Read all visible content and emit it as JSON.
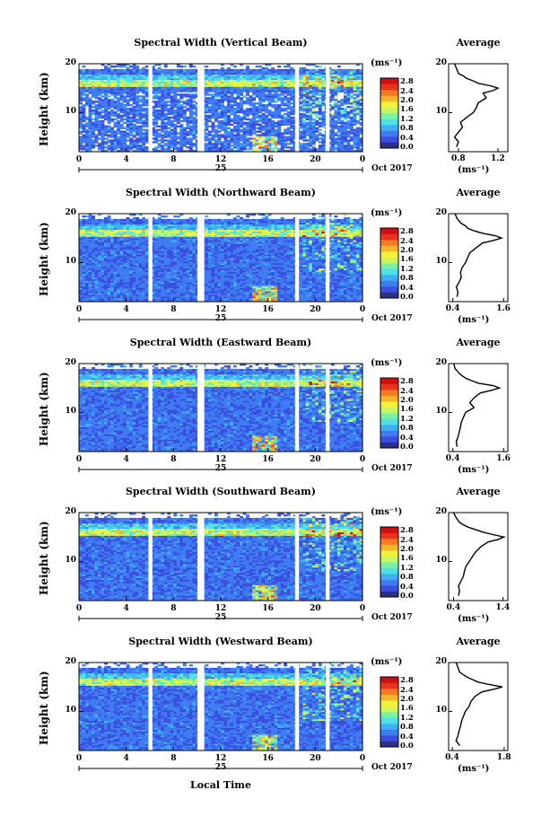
{
  "chart_data": [
    {
      "type": "heatmap",
      "title": "Spectral Width (Vertical Beam)",
      "ylabel": "Height (km)",
      "y_ticks": [
        "20",
        "10"
      ],
      "x_ticks": [
        "0",
        "4",
        "8",
        "12",
        "16",
        "20",
        "0"
      ],
      "date_label": "25",
      "month_label": "Oct 2017",
      "colorbar": {
        "unit": "(ms⁻¹)",
        "ticks": [
          "2.8",
          "2.4",
          "2.0",
          "1.6",
          "1.2",
          "0.8",
          "0.4",
          "0.0"
        ]
      },
      "average": {
        "title": "Average",
        "unit": "(ms⁻¹)",
        "x_ticks": [
          "0.8",
          "1.2"
        ],
        "y_ticks": [
          "20",
          "10"
        ],
        "xlim": [
          0.7,
          1.3
        ],
        "height_km": [
          3,
          4,
          5,
          6,
          7,
          8,
          9,
          10,
          11,
          12,
          13,
          14,
          14.5,
          15,
          15.5,
          16,
          16.5,
          17,
          17.5,
          18,
          19,
          20
        ],
        "values": [
          0.78,
          0.8,
          0.76,
          0.8,
          0.84,
          0.82,
          0.88,
          0.95,
          0.98,
          1.0,
          1.08,
          1.05,
          1.15,
          1.2,
          1.12,
          1.0,
          0.95,
          0.88,
          0.85,
          0.8,
          0.78,
          0.76
        ]
      }
    },
    {
      "type": "heatmap",
      "title": "Spectral Width (Northward Beam)",
      "ylabel": "Height (km)",
      "y_ticks": [
        "20",
        "10"
      ],
      "x_ticks": [
        "0",
        "4",
        "8",
        "12",
        "16",
        "20",
        "0"
      ],
      "date_label": "25",
      "month_label": "Oct 2017",
      "colorbar": {
        "unit": "(ms⁻¹)",
        "ticks": [
          "2.8",
          "2.4",
          "2.0",
          "1.6",
          "1.2",
          "0.8",
          "0.4",
          "0.0"
        ]
      },
      "average": {
        "title": "Average",
        "unit": "(ms⁻¹)",
        "x_ticks": [
          "0.4",
          "1.6"
        ],
        "y_ticks": [
          "20",
          "10"
        ],
        "xlim": [
          0.3,
          1.7
        ],
        "height_km": [
          3,
          4,
          5,
          6,
          7,
          8,
          9,
          10,
          11,
          12,
          13,
          14,
          14.5,
          15,
          15.5,
          16,
          16.5,
          17,
          17.5,
          18,
          19,
          20
        ],
        "values": [
          0.5,
          0.52,
          0.48,
          0.55,
          0.6,
          0.58,
          0.62,
          0.7,
          0.75,
          0.8,
          0.95,
          1.1,
          1.35,
          1.55,
          1.4,
          1.1,
          0.9,
          0.75,
          0.7,
          0.6,
          0.5,
          0.45
        ]
      }
    },
    {
      "type": "heatmap",
      "title": "Spectral Width (Eastward Beam)",
      "ylabel": "Height (km)",
      "y_ticks": [
        "20",
        "10"
      ],
      "x_ticks": [
        "0",
        "4",
        "8",
        "12",
        "16",
        "20",
        "0"
      ],
      "date_label": "25",
      "month_label": "Oct 2017",
      "colorbar": {
        "unit": "(ms⁻¹)",
        "ticks": [
          "2.8",
          "2.4",
          "2.0",
          "1.6",
          "1.2",
          "0.8",
          "0.4",
          "0.0"
        ]
      },
      "average": {
        "title": "Average",
        "unit": "(ms⁻¹)",
        "x_ticks": [
          "0.4",
          "1.6"
        ],
        "y_ticks": [
          "20",
          "10"
        ],
        "xlim": [
          0.3,
          1.7
        ],
        "height_km": [
          3,
          4,
          5,
          6,
          7,
          8,
          9,
          10,
          11,
          12,
          13,
          14,
          14.5,
          15,
          15.5,
          16,
          16.5,
          17,
          17.5,
          18,
          19,
          20
        ],
        "values": [
          0.5,
          0.48,
          0.52,
          0.55,
          0.58,
          0.6,
          0.65,
          0.7,
          0.9,
          0.8,
          0.9,
          1.05,
          1.3,
          1.5,
          1.35,
          1.0,
          0.85,
          0.7,
          0.62,
          0.55,
          0.45,
          0.42
        ]
      }
    },
    {
      "type": "heatmap",
      "title": "Spectral Width (Southward Beam)",
      "ylabel": "Height (km)",
      "y_ticks": [
        "20",
        "10"
      ],
      "x_ticks": [
        "0",
        "4",
        "8",
        "12",
        "16",
        "20",
        "0"
      ],
      "date_label": "25",
      "month_label": "Oct 2017",
      "colorbar": {
        "unit": "(ms⁻¹)",
        "ticks": [
          "2.8",
          "2.4",
          "2.0",
          "1.6",
          "1.2",
          "0.8",
          "0.4",
          "0.0"
        ]
      },
      "average": {
        "title": "Average",
        "unit": "(ms⁻¹)",
        "x_ticks": [
          "0.4",
          "1.4"
        ],
        "y_ticks": [
          "20",
          "10"
        ],
        "xlim": [
          0.3,
          1.5
        ],
        "height_km": [
          3,
          4,
          5,
          6,
          7,
          8,
          9,
          10,
          11,
          12,
          13,
          14,
          14.5,
          15,
          15.5,
          16,
          16.5,
          17,
          17.5,
          18,
          19,
          20
        ],
        "values": [
          0.5,
          0.52,
          0.5,
          0.55,
          0.6,
          0.62,
          0.65,
          0.72,
          0.78,
          0.85,
          0.95,
          1.1,
          1.3,
          1.42,
          1.2,
          1.0,
          0.85,
          0.7,
          0.6,
          0.52,
          0.45,
          0.4
        ]
      }
    },
    {
      "type": "heatmap",
      "title": "Spectral Width (Westward Beam)",
      "ylabel": "Height (km)",
      "y_ticks": [
        "20",
        "10"
      ],
      "x_ticks": [
        "0",
        "4",
        "8",
        "12",
        "16",
        "20",
        "0"
      ],
      "date_label": "25",
      "month_label": "Oct 2017",
      "colorbar": {
        "unit": "(ms⁻¹)",
        "ticks": [
          "2.8",
          "2.4",
          "2.0",
          "1.6",
          "1.2",
          "0.8",
          "0.4",
          "0.0"
        ]
      },
      "average": {
        "title": "Average",
        "unit": "(ms⁻¹)",
        "x_ticks": [
          "0.4",
          "1.8"
        ],
        "y_ticks": [
          "20",
          "10"
        ],
        "xlim": [
          0.3,
          1.9
        ],
        "height_km": [
          3,
          4,
          5,
          6,
          7,
          8,
          9,
          10,
          11,
          12,
          13,
          14,
          14.5,
          15,
          15.5,
          16,
          16.5,
          17,
          17.5,
          18,
          19,
          20
        ],
        "values": [
          0.6,
          0.5,
          0.55,
          0.58,
          0.62,
          0.65,
          0.7,
          0.75,
          0.85,
          0.9,
          1.0,
          1.2,
          1.5,
          1.75,
          1.4,
          1.1,
          0.95,
          0.8,
          0.7,
          0.6,
          0.55,
          0.5
        ]
      }
    }
  ],
  "x_axis_title": "Local Time",
  "colors": {
    "colormap": [
      "#2b2f86",
      "#3a4fe0",
      "#3f7cf2",
      "#3fb0f5",
      "#4fe0e8",
      "#7af0a8",
      "#c8f560",
      "#f5f03a",
      "#f5b52a",
      "#f57a22",
      "#e8341c",
      "#d01010"
    ],
    "background": "#ffffff",
    "text": "#000000"
  }
}
